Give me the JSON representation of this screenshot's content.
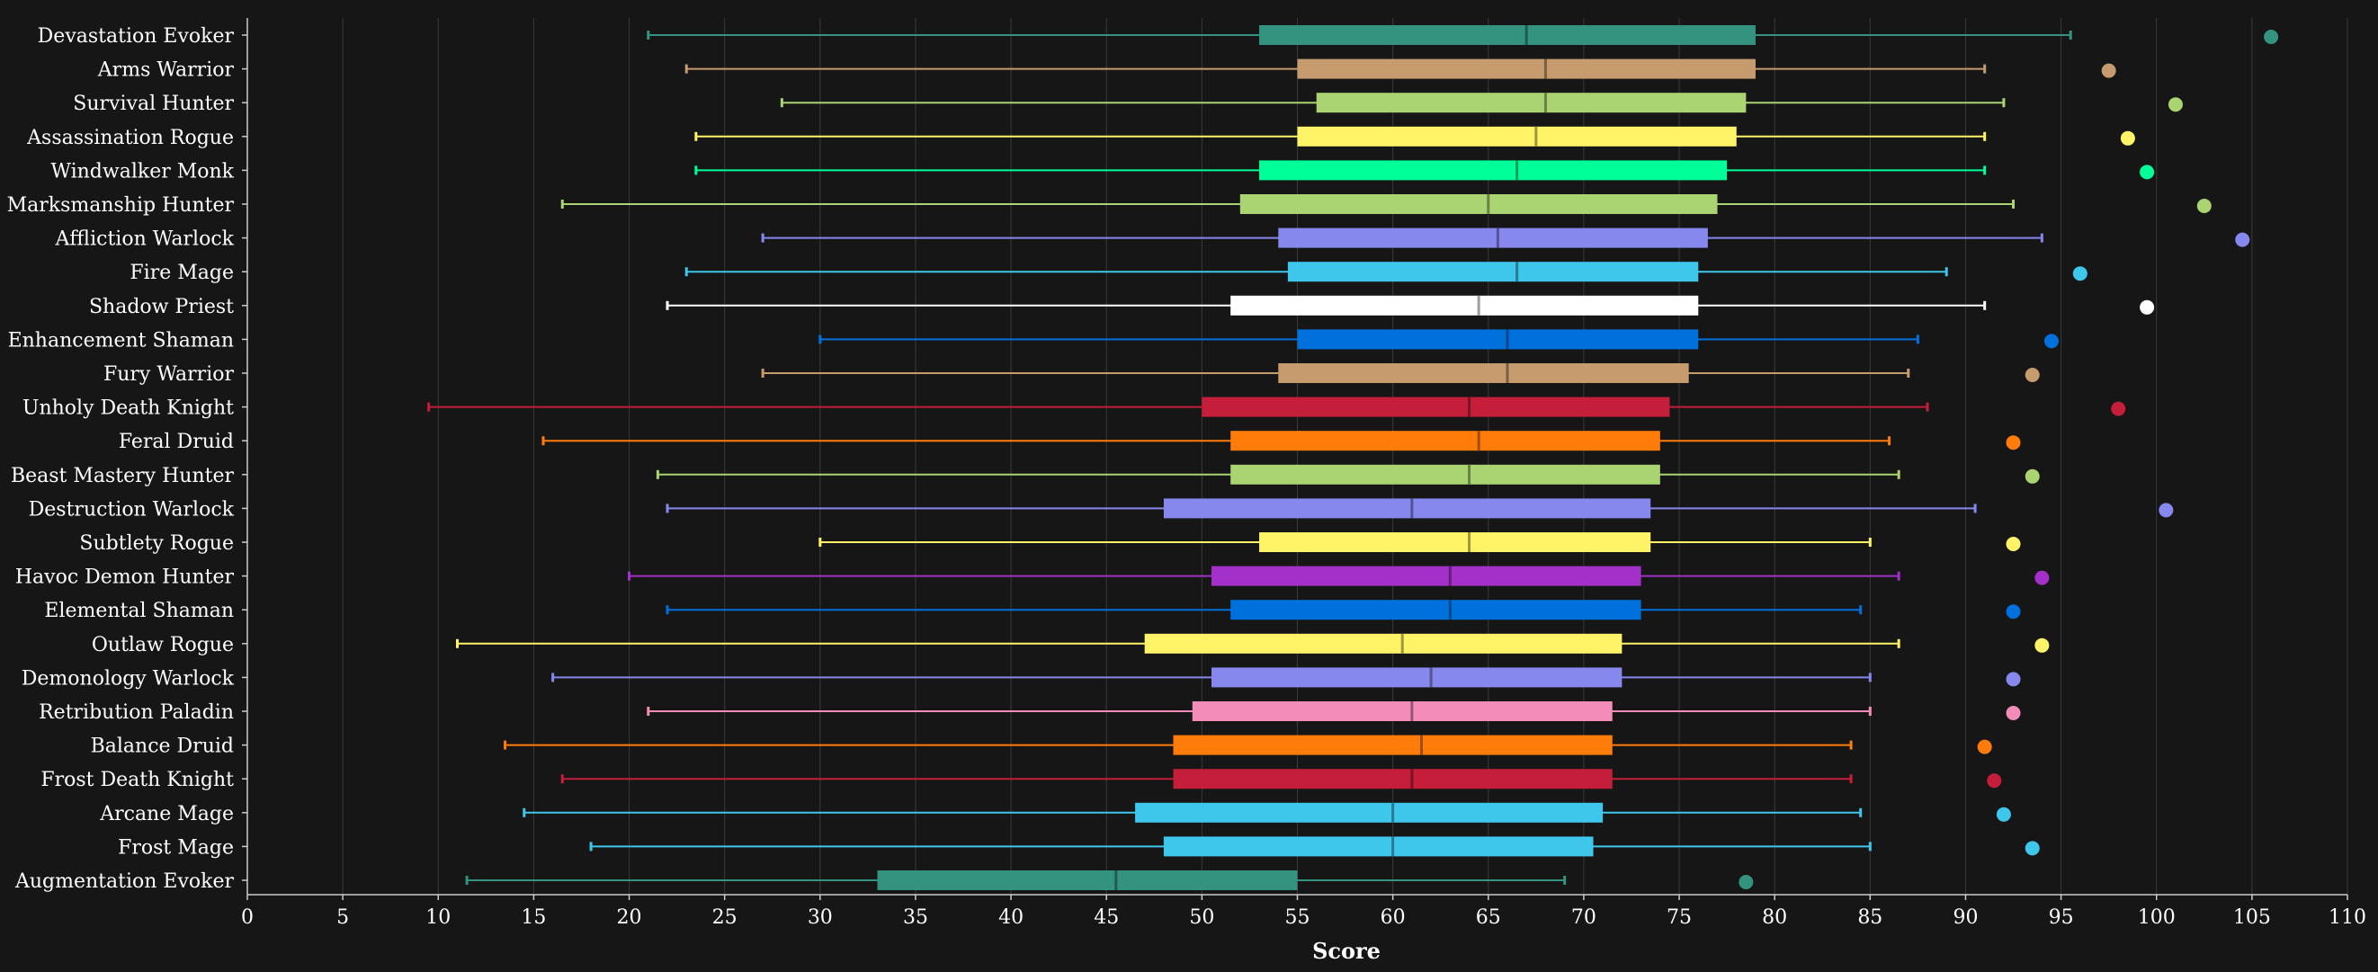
{
  "chart_data": {
    "type": "box",
    "xlabel": "Score",
    "xlim": [
      0,
      110
    ],
    "x_ticks": [
      "0",
      "5",
      "10",
      "15",
      "20",
      "25",
      "30",
      "35",
      "40",
      "45",
      "50",
      "55",
      "60",
      "65",
      "70",
      "75",
      "80",
      "85",
      "90",
      "95",
      "100",
      "105",
      "110"
    ],
    "grid": "vertical",
    "series": [
      {
        "name": "Devastation Evoker",
        "color": "#33937F",
        "min": 21,
        "q1": 53,
        "median": 67,
        "q3": 79,
        "max": 95.5,
        "outlier": 106
      },
      {
        "name": "Arms Warrior",
        "color": "#C69B6D",
        "min": 23,
        "q1": 55,
        "median": 68,
        "q3": 79,
        "max": 91,
        "outlier": 97.5
      },
      {
        "name": "Survival Hunter",
        "color": "#AAD372",
        "min": 28,
        "q1": 56,
        "median": 68,
        "q3": 78.5,
        "max": 92,
        "outlier": 101
      },
      {
        "name": "Assassination Rogue",
        "color": "#FFF468",
        "min": 23.5,
        "q1": 55,
        "median": 67.5,
        "q3": 78,
        "max": 91,
        "outlier": 98.5
      },
      {
        "name": "Windwalker Monk",
        "color": "#00FF98",
        "min": 23.5,
        "q1": 53,
        "median": 66.5,
        "q3": 77.5,
        "max": 91,
        "outlier": 99.5
      },
      {
        "name": "Marksmanship Hunter",
        "color": "#AAD372",
        "min": 16.5,
        "q1": 52,
        "median": 65,
        "q3": 77,
        "max": 92.5,
        "outlier": 102.5
      },
      {
        "name": "Affliction Warlock",
        "color": "#8788EE",
        "min": 27,
        "q1": 54,
        "median": 65.5,
        "q3": 76.5,
        "max": 94,
        "outlier": 104.5
      },
      {
        "name": "Fire Mage",
        "color": "#3FC7EB",
        "min": 23,
        "q1": 54.5,
        "median": 66.5,
        "q3": 76,
        "max": 89,
        "outlier": 96
      },
      {
        "name": "Shadow Priest",
        "color": "#FFFFFF",
        "min": 22,
        "q1": 51.5,
        "median": 64.5,
        "q3": 76,
        "max": 91,
        "outlier": 99.5
      },
      {
        "name": "Enhancement Shaman",
        "color": "#0070DD",
        "min": 30,
        "q1": 55,
        "median": 66,
        "q3": 76,
        "max": 87.5,
        "outlier": 94.5
      },
      {
        "name": "Fury Warrior",
        "color": "#C69B6D",
        "min": 27,
        "q1": 54,
        "median": 66,
        "q3": 75.5,
        "max": 87,
        "outlier": 93.5
      },
      {
        "name": "Unholy Death Knight",
        "color": "#C41E3A",
        "min": 9.5,
        "q1": 50,
        "median": 64,
        "q3": 74.5,
        "max": 88,
        "outlier": 98
      },
      {
        "name": "Feral Druid",
        "color": "#FF7C0A",
        "min": 15.5,
        "q1": 51.5,
        "median": 64.5,
        "q3": 74,
        "max": 86,
        "outlier": 92.5
      },
      {
        "name": "Beast Mastery Hunter",
        "color": "#AAD372",
        "min": 21.5,
        "q1": 51.5,
        "median": 64,
        "q3": 74,
        "max": 86.5,
        "outlier": 93.5
      },
      {
        "name": "Destruction Warlock",
        "color": "#8788EE",
        "min": 22,
        "q1": 48,
        "median": 61,
        "q3": 73.5,
        "max": 90.5,
        "outlier": 100.5
      },
      {
        "name": "Subtlety Rogue",
        "color": "#FFF468",
        "min": 30,
        "q1": 53,
        "median": 64,
        "q3": 73.5,
        "max": 85,
        "outlier": 92.5
      },
      {
        "name": "Havoc Demon Hunter",
        "color": "#A330C9",
        "min": 20,
        "q1": 50.5,
        "median": 63,
        "q3": 73,
        "max": 86.5,
        "outlier": 94
      },
      {
        "name": "Elemental Shaman",
        "color": "#0070DD",
        "min": 22,
        "q1": 51.5,
        "median": 63,
        "q3": 73,
        "max": 84.5,
        "outlier": 92.5
      },
      {
        "name": "Outlaw Rogue",
        "color": "#FFF468",
        "min": 11,
        "q1": 47,
        "median": 60.5,
        "q3": 72,
        "max": 86.5,
        "outlier": 94
      },
      {
        "name": "Demonology Warlock",
        "color": "#8788EE",
        "min": 16,
        "q1": 50.5,
        "median": 62,
        "q3": 72,
        "max": 85,
        "outlier": 92.5
      },
      {
        "name": "Retribution Paladin",
        "color": "#F48CBA",
        "min": 21,
        "q1": 49.5,
        "median": 61,
        "q3": 71.5,
        "max": 85,
        "outlier": 92.5
      },
      {
        "name": "Balance Druid",
        "color": "#FF7C0A",
        "min": 13.5,
        "q1": 48.5,
        "median": 61.5,
        "q3": 71.5,
        "max": 84,
        "outlier": 91
      },
      {
        "name": "Frost Death Knight",
        "color": "#C41E3A",
        "min": 16.5,
        "q1": 48.5,
        "median": 61,
        "q3": 71.5,
        "max": 84,
        "outlier": 91.5
      },
      {
        "name": "Arcane Mage",
        "color": "#3FC7EB",
        "min": 14.5,
        "q1": 46.5,
        "median": 60,
        "q3": 71,
        "max": 84.5,
        "outlier": 92
      },
      {
        "name": "Frost Mage",
        "color": "#3FC7EB",
        "min": 18,
        "q1": 48,
        "median": 60,
        "q3": 70.5,
        "max": 85,
        "outlier": 93.5
      },
      {
        "name": "Augmentation Evoker",
        "color": "#33937F",
        "min": 11.5,
        "q1": 33,
        "median": 45.5,
        "q3": 55,
        "max": 69,
        "outlier": 78.5
      }
    ]
  }
}
